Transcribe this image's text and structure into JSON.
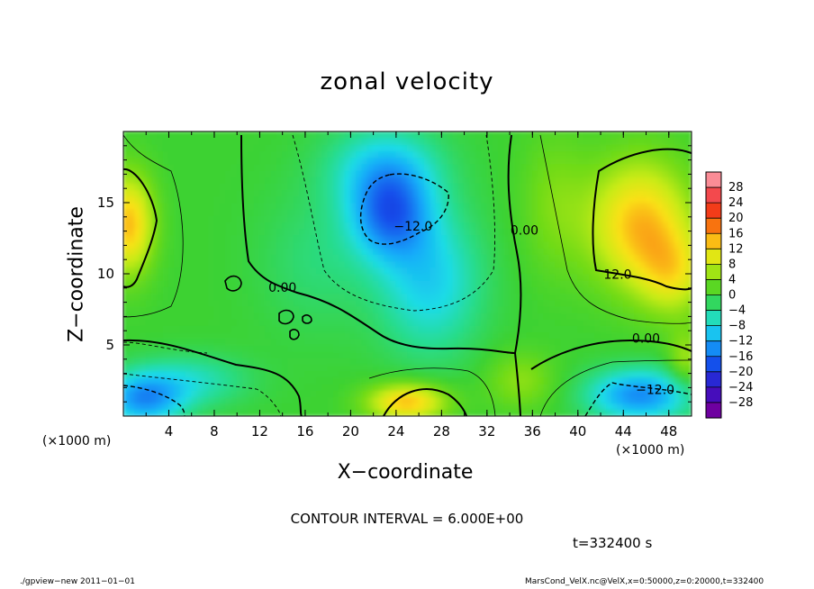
{
  "chart_data": {
    "type": "heatmap",
    "title": "zonal velocity",
    "xlabel": "X−coordinate",
    "ylabel": "Z−coordinate",
    "x_unit": "(×1000 m)",
    "z_unit": "(×1000 m)",
    "xlim": [
      0,
      50
    ],
    "zlim": [
      0,
      20
    ],
    "x_ticks": [
      4,
      8,
      12,
      16,
      20,
      24,
      28,
      32,
      36,
      40,
      44,
      48
    ],
    "z_ticks": [
      5,
      10,
      15
    ],
    "colorbar": {
      "levels": [
        28,
        24,
        20,
        16,
        12,
        8,
        4,
        0,
        -4,
        -8,
        -12,
        -16,
        -20,
        -24,
        -28
      ],
      "labels": [
        "28",
        "24",
        "20",
        "16",
        "12",
        "8",
        "4",
        "0",
        "−4",
        "−8",
        "−12",
        "−16",
        "−20",
        "−24",
        "−28"
      ]
    },
    "contour_interval_text": "CONTOUR INTERVAL = 6.000E+00",
    "contour_labels": [
      {
        "text": "−12.0",
        "x": 25.5,
        "z": 13.3
      },
      {
        "text": "0.00",
        "x": 35.3,
        "z": 13.0
      },
      {
        "text": "0.00",
        "x": 14.0,
        "z": 9.0
      },
      {
        "text": "12.0",
        "x": 43.5,
        "z": 9.9
      },
      {
        "text": "0.00",
        "x": 46.0,
        "z": 5.4
      },
      {
        "text": "−12.0",
        "x": 46.8,
        "z": 1.8
      }
    ],
    "features": [
      {
        "x": 0.5,
        "z": 13.5,
        "value": 14,
        "sx": 2.2,
        "sz": 3.5
      },
      {
        "x": 45.5,
        "z": 13.5,
        "value": 14,
        "sx": 4.5,
        "sz": 4.5
      },
      {
        "x": 48.5,
        "z": 10.0,
        "value": 8,
        "sx": 3,
        "sz": 3
      },
      {
        "x": 38.0,
        "z": 15.0,
        "value": 4,
        "sx": 3,
        "sz": 5
      },
      {
        "x": 23.5,
        "z": 14.2,
        "value": -14,
        "sx": 3.5,
        "sz": 3.2
      },
      {
        "x": 27.0,
        "z": 9.5,
        "value": -9,
        "sx": 4.5,
        "sz": 5
      },
      {
        "x": 23.0,
        "z": 17.5,
        "value": -8,
        "sx": 5,
        "sz": 3
      },
      {
        "x": 17.0,
        "z": 11.0,
        "value": -3,
        "sx": 5,
        "sz": 5
      },
      {
        "x": 25.0,
        "z": 1.0,
        "value": 14,
        "sx": 3.5,
        "sz": 1.3
      },
      {
        "x": 45.5,
        "z": 1.5,
        "value": -14,
        "sx": 4.5,
        "sz": 1.8
      },
      {
        "x": 1.8,
        "z": 1.2,
        "value": -13,
        "sx": 3.5,
        "sz": 1.8
      },
      {
        "x": 6.0,
        "z": 2.5,
        "value": -6,
        "sx": 5,
        "sz": 1.8
      },
      {
        "x": 35.0,
        "z": 2.5,
        "value": 5,
        "sx": 3,
        "sz": 2
      },
      {
        "x": 49.5,
        "z": 4.0,
        "value": 6,
        "sx": 1.5,
        "sz": 2
      }
    ]
  },
  "annotations": {
    "time": "t=332400 s",
    "footer_left": "./gpview−new   2011−01−01",
    "footer_right": "MarsCond_VelX.nc@VelX,x=0:50000,z=0:20000,t=332400"
  }
}
